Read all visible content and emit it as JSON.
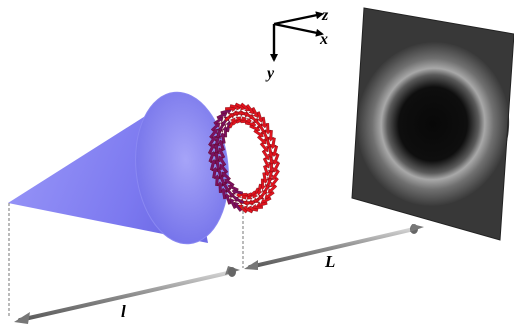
{
  "axes": {
    "z": "z",
    "x": "x",
    "y": "y"
  },
  "distances": {
    "cone_length": "l",
    "propagation_distance": "L"
  },
  "colors": {
    "cone": "#7a78f2",
    "arrows": "#e0141e",
    "arrow_shade": "#7a1060",
    "screen_dark": "#0d0d0d",
    "screen_ring": "#8a8a8a",
    "rod": "#8c8c8c"
  }
}
